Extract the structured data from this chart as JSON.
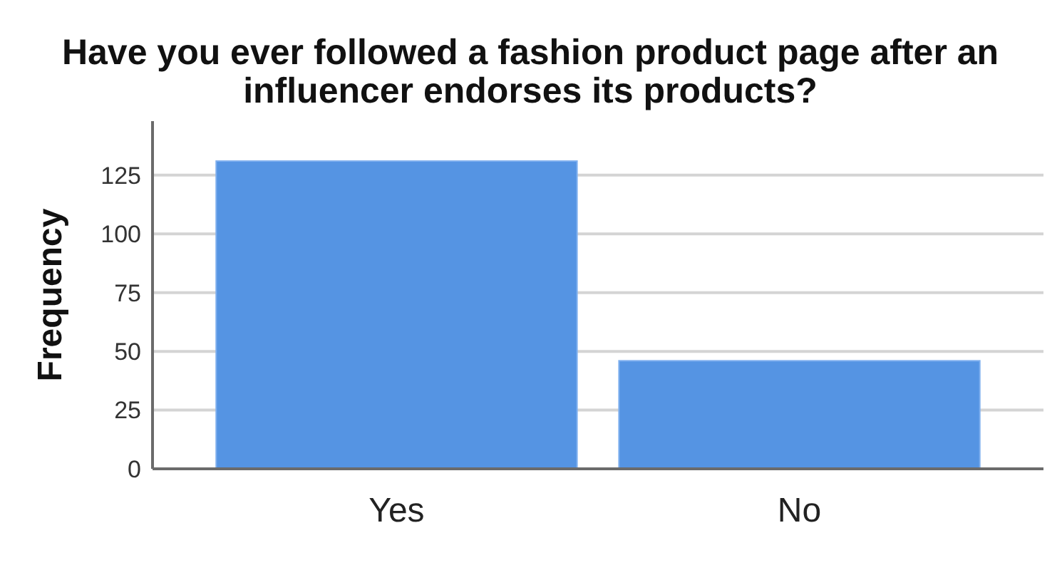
{
  "chart_data": {
    "type": "bar",
    "title": "Have you ever followed a fashion product page after an influencer endorses its products?",
    "ylabel": "Frequency",
    "categories": [
      "Yes",
      "No"
    ],
    "values": [
      131,
      46
    ],
    "color": "#5594e3",
    "ylim": [
      0,
      148
    ],
    "yticks": [
      0,
      25,
      50,
      75,
      100,
      125
    ],
    "grid": "y"
  }
}
